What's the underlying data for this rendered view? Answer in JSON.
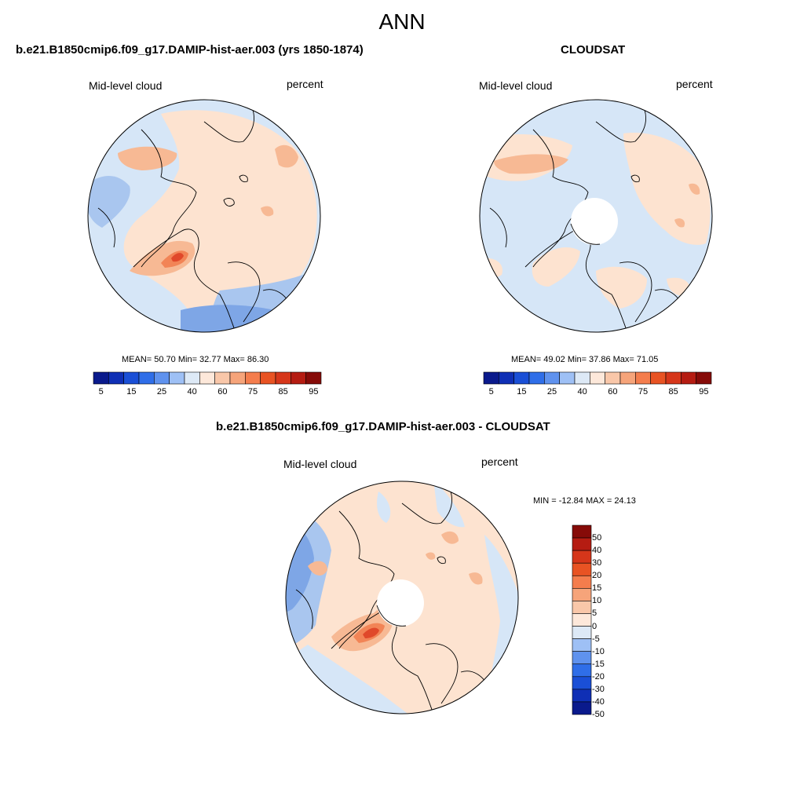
{
  "title": "ANN",
  "panels": [
    {
      "id": "model",
      "title": "b.e21.B1850cmip6.f09_g17.DAMIP-hist-aer.003 (yrs 1850-1874)",
      "left_label": "Mid-level cloud",
      "right_label": "percent",
      "stats": "MEAN=  50.70  Min=  32.77  Max=  86.30"
    },
    {
      "id": "obs",
      "title": "CLOUDSAT",
      "left_label": "Mid-level cloud",
      "right_label": "percent",
      "stats": "MEAN=  49.02  Min=  37.86  Max=  71.05"
    },
    {
      "id": "diff",
      "title": "b.e21.B1850cmip6.f09_g17.DAMIP-hist-aer.003 - CLOUDSAT",
      "left_label": "Mid-level cloud",
      "right_label": "percent",
      "stats": "MIN = -12.84 MAX =  24.13"
    }
  ],
  "colorbar_abs": {
    "colors": [
      "#0a1a8c",
      "#0f2fb5",
      "#1a4fd6",
      "#2f6ee8",
      "#5f92ee",
      "#9ec0f5",
      "#dde9f6",
      "#fde8da",
      "#f9c7a9",
      "#f6a47a",
      "#f47d4d",
      "#e85323",
      "#d6361a",
      "#b51c12",
      "#860b08"
    ],
    "tick_labels": [
      "5",
      "15",
      "25",
      "40",
      "60",
      "75",
      "85",
      "95"
    ]
  },
  "colorbar_diff": {
    "colors": [
      "#0a1a8c",
      "#0f2fb5",
      "#1a4fd6",
      "#2f6ee8",
      "#5f92ee",
      "#9ec0f5",
      "#dde9f6",
      "#fde8da",
      "#f9c7a9",
      "#f6a47a",
      "#f47d4d",
      "#e85323",
      "#d6361a",
      "#b51c12",
      "#860b08"
    ],
    "tick_labels": [
      "-50",
      "-40",
      "-30",
      "-20",
      "-15",
      "-10",
      "-5",
      "0",
      "5",
      "10",
      "15",
      "20",
      "30",
      "40",
      "50"
    ]
  },
  "colors": {
    "light_blue": "#d6e6f7",
    "mid_blue": "#a9c6ef",
    "deep_blue": "#7ea6e6",
    "peach": "#fde3d0",
    "salmon": "#f7b994",
    "orange": "#f28456",
    "red": "#e0482a",
    "coast": "#000000"
  }
}
